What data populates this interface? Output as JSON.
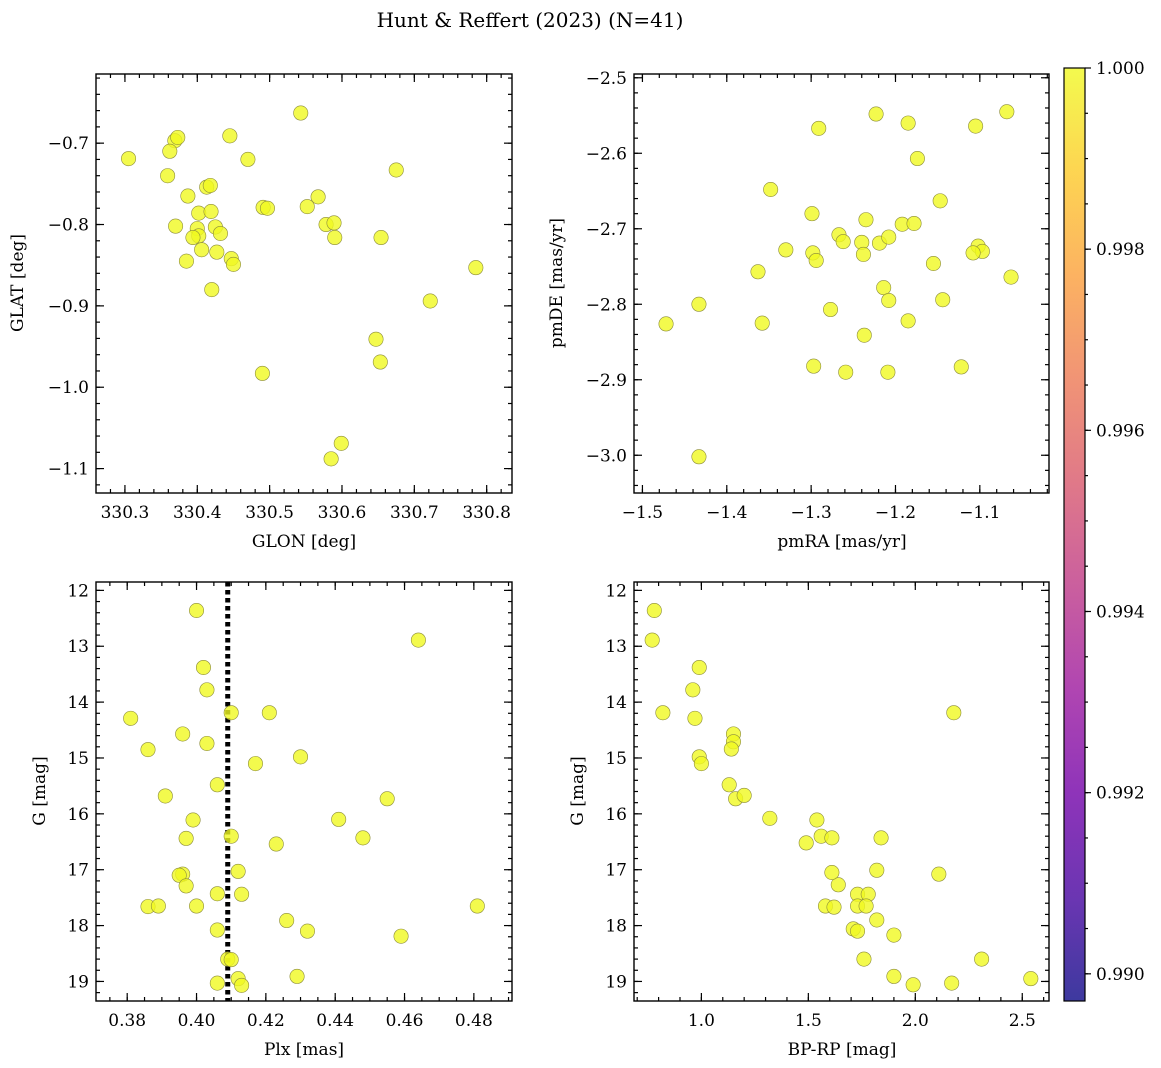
{
  "suptitle": "Hunt & Reffert (2023) (N=41)",
  "point_color": "#f0f921",
  "chart_data": [
    {
      "type": "scatter",
      "xlabel": "GLON [deg]",
      "ylabel": "GLAT [deg]",
      "xlim": [
        330.26,
        330.835
      ],
      "ylim": [
        -1.13,
        -0.615
      ],
      "y_inverted": false,
      "xticks": [
        330.3,
        330.4,
        330.5,
        330.6,
        330.7,
        330.8
      ],
      "xtick_labels": [
        "330.3",
        "330.4",
        "330.5",
        "330.6",
        "330.7",
        "330.8"
      ],
      "xminor": 0.02,
      "yticks": [
        -0.7,
        -0.8,
        -0.9,
        -1.0,
        -1.1
      ],
      "ytick_labels": [
        "−0.7",
        "−0.8",
        "−0.9",
        "−1.0",
        "−1.1"
      ],
      "yminor": 0.02,
      "points": [
        [
          330.543,
          -0.663
        ],
        [
          330.305,
          -0.719
        ],
        [
          330.369,
          -0.697
        ],
        [
          330.373,
          -0.693
        ],
        [
          330.362,
          -0.71
        ],
        [
          330.445,
          -0.691
        ],
        [
          330.359,
          -0.74
        ],
        [
          330.47,
          -0.72
        ],
        [
          330.675,
          -0.733
        ],
        [
          330.387,
          -0.765
        ],
        [
          330.413,
          -0.754
        ],
        [
          330.418,
          -0.752
        ],
        [
          330.37,
          -0.802
        ],
        [
          330.402,
          -0.786
        ],
        [
          330.419,
          -0.784
        ],
        [
          330.491,
          -0.779
        ],
        [
          330.497,
          -0.78
        ],
        [
          330.552,
          -0.778
        ],
        [
          330.567,
          -0.766
        ],
        [
          330.4,
          -0.805
        ],
        [
          330.402,
          -0.814
        ],
        [
          330.425,
          -0.803
        ],
        [
          330.394,
          -0.816
        ],
        [
          330.432,
          -0.811
        ],
        [
          330.578,
          -0.8
        ],
        [
          330.589,
          -0.798
        ],
        [
          330.59,
          -0.816
        ],
        [
          330.654,
          -0.816
        ],
        [
          330.406,
          -0.831
        ],
        [
          330.427,
          -0.834
        ],
        [
          330.447,
          -0.842
        ],
        [
          330.45,
          -0.849
        ],
        [
          330.385,
          -0.845
        ],
        [
          330.785,
          -0.853
        ],
        [
          330.42,
          -0.88
        ],
        [
          330.722,
          -0.894
        ],
        [
          330.647,
          -0.941
        ],
        [
          330.653,
          -0.969
        ],
        [
          330.49,
          -0.983
        ],
        [
          330.599,
          -1.069
        ],
        [
          330.585,
          -1.088
        ]
      ]
    },
    {
      "type": "scatter",
      "xlabel": "pmRA [mas/yr]",
      "ylabel": "pmDE [mas/yr]",
      "xlim": [
        -1.51,
        -1.018
      ],
      "ylim": [
        -3.05,
        -2.495
      ],
      "y_inverted": false,
      "xticks": [
        -1.5,
        -1.4,
        -1.3,
        -1.2,
        -1.1
      ],
      "xtick_labels": [
        "−1.5",
        "−1.4",
        "−1.3",
        "−1.2",
        "−1.1"
      ],
      "xminor": 0.02,
      "yticks": [
        -2.5,
        -2.6,
        -2.7,
        -2.8,
        -2.9,
        -3.0
      ],
      "ytick_labels": [
        "−2.5",
        "−2.6",
        "−2.7",
        "−2.8",
        "−2.9",
        "−3.0"
      ],
      "yminor": 0.02,
      "points": [
        [
          -1.068,
          -2.545
        ],
        [
          -1.223,
          -2.548
        ],
        [
          -1.185,
          -2.56
        ],
        [
          -1.105,
          -2.564
        ],
        [
          -1.291,
          -2.567
        ],
        [
          -1.174,
          -2.607
        ],
        [
          -1.348,
          -2.648
        ],
        [
          -1.147,
          -2.663
        ],
        [
          -1.299,
          -2.68
        ],
        [
          -1.235,
          -2.688
        ],
        [
          -1.192,
          -2.694
        ],
        [
          -1.178,
          -2.693
        ],
        [
          -1.267,
          -2.708
        ],
        [
          -1.262,
          -2.717
        ],
        [
          -1.24,
          -2.718
        ],
        [
          -1.219,
          -2.719
        ],
        [
          -1.208,
          -2.711
        ],
        [
          -1.33,
          -2.728
        ],
        [
          -1.102,
          -2.723
        ],
        [
          -1.097,
          -2.73
        ],
        [
          -1.108,
          -2.732
        ],
        [
          -1.298,
          -2.732
        ],
        [
          -1.294,
          -2.742
        ],
        [
          -1.238,
          -2.734
        ],
        [
          -1.155,
          -2.746
        ],
        [
          -1.363,
          -2.757
        ],
        [
          -1.063,
          -2.764
        ],
        [
          -1.214,
          -2.778
        ],
        [
          -1.208,
          -2.795
        ],
        [
          -1.144,
          -2.794
        ],
        [
          -1.433,
          -2.8
        ],
        [
          -1.277,
          -2.807
        ],
        [
          -1.472,
          -2.826
        ],
        [
          -1.358,
          -2.825
        ],
        [
          -1.185,
          -2.822
        ],
        [
          -1.237,
          -2.841
        ],
        [
          -1.122,
          -2.883
        ],
        [
          -1.297,
          -2.882
        ],
        [
          -1.259,
          -2.89
        ],
        [
          -1.209,
          -2.89
        ],
        [
          -1.433,
          -3.002
        ]
      ]
    },
    {
      "type": "scatter",
      "xlabel": "Plx [mas]",
      "ylabel": "G [mag]",
      "xlim": [
        0.371,
        0.491
      ],
      "ylim": [
        11.85,
        19.35
      ],
      "y_inverted": true,
      "vline": {
        "x": 0.409,
        "style": "dotted",
        "color": "#000000"
      },
      "xticks": [
        0.38,
        0.4,
        0.42,
        0.44,
        0.46,
        0.48
      ],
      "xtick_labels": [
        "0.38",
        "0.40",
        "0.42",
        "0.44",
        "0.46",
        "0.48"
      ],
      "xminor": 0.005,
      "yticks": [
        12,
        13,
        14,
        15,
        16,
        17,
        18,
        19
      ],
      "ytick_labels": [
        "12",
        "13",
        "14",
        "15",
        "16",
        "17",
        "18",
        "19"
      ],
      "yminor": 0.2,
      "points": [
        [
          0.4,
          12.36
        ],
        [
          0.464,
          12.89
        ],
        [
          0.402,
          13.38
        ],
        [
          0.403,
          13.78
        ],
        [
          0.381,
          14.29
        ],
        [
          0.41,
          14.19
        ],
        [
          0.421,
          14.19
        ],
        [
          0.396,
          14.57
        ],
        [
          0.403,
          14.74
        ],
        [
          0.386,
          14.85
        ],
        [
          0.43,
          14.98
        ],
        [
          0.417,
          15.1
        ],
        [
          0.406,
          15.48
        ],
        [
          0.391,
          15.68
        ],
        [
          0.455,
          15.73
        ],
        [
          0.399,
          16.11
        ],
        [
          0.441,
          16.1
        ],
        [
          0.41,
          16.4
        ],
        [
          0.397,
          16.44
        ],
        [
          0.448,
          16.43
        ],
        [
          0.423,
          16.54
        ],
        [
          0.412,
          17.03
        ],
        [
          0.396,
          17.08
        ],
        [
          0.395,
          17.1
        ],
        [
          0.397,
          17.29
        ],
        [
          0.413,
          17.44
        ],
        [
          0.406,
          17.43
        ],
        [
          0.386,
          17.66
        ],
        [
          0.389,
          17.65
        ],
        [
          0.4,
          17.65
        ],
        [
          0.481,
          17.65
        ],
        [
          0.426,
          17.91
        ],
        [
          0.406,
          18.08
        ],
        [
          0.432,
          18.1
        ],
        [
          0.459,
          18.19
        ],
        [
          0.409,
          18.6
        ],
        [
          0.41,
          18.61
        ],
        [
          0.429,
          18.91
        ],
        [
          0.412,
          18.95
        ],
        [
          0.406,
          19.03
        ],
        [
          0.413,
          19.07
        ]
      ]
    },
    {
      "type": "scatter",
      "xlabel": "BP-RP [mag]",
      "ylabel": "G [mag]",
      "xlim": [
        0.685,
        2.625
      ],
      "ylim": [
        11.85,
        19.35
      ],
      "y_inverted": true,
      "xticks": [
        1.0,
        1.5,
        2.0,
        2.5
      ],
      "xtick_labels": [
        "1.0",
        "1.5",
        "2.0",
        "2.5"
      ],
      "xminor": 0.1,
      "yticks": [
        12,
        13,
        14,
        15,
        16,
        17,
        18,
        19
      ],
      "ytick_labels": [
        "12",
        "13",
        "14",
        "15",
        "16",
        "17",
        "18",
        "19"
      ],
      "yminor": 0.2,
      "points": [
        [
          0.78,
          12.36
        ],
        [
          0.77,
          12.89
        ],
        [
          0.99,
          13.38
        ],
        [
          0.96,
          13.78
        ],
        [
          0.82,
          14.19
        ],
        [
          0.97,
          14.29
        ],
        [
          1.15,
          14.57
        ],
        [
          1.15,
          14.71
        ],
        [
          1.14,
          14.84
        ],
        [
          2.18,
          14.19
        ],
        [
          0.99,
          14.98
        ],
        [
          1.0,
          15.1
        ],
        [
          1.13,
          15.48
        ],
        [
          1.16,
          15.73
        ],
        [
          1.2,
          15.67
        ],
        [
          1.32,
          16.08
        ],
        [
          1.54,
          16.11
        ],
        [
          1.56,
          16.4
        ],
        [
          1.61,
          16.43
        ],
        [
          1.84,
          16.43
        ],
        [
          1.49,
          16.52
        ],
        [
          1.64,
          17.27
        ],
        [
          1.61,
          17.05
        ],
        [
          1.82,
          17.01
        ],
        [
          2.11,
          17.08
        ],
        [
          1.73,
          17.44
        ],
        [
          1.78,
          17.44
        ],
        [
          1.58,
          17.65
        ],
        [
          1.62,
          17.67
        ],
        [
          1.73,
          17.65
        ],
        [
          1.77,
          17.65
        ],
        [
          1.82,
          17.9
        ],
        [
          1.71,
          18.06
        ],
        [
          1.73,
          18.1
        ],
        [
          1.9,
          18.17
        ],
        [
          2.31,
          18.6
        ],
        [
          1.76,
          18.6
        ],
        [
          1.9,
          18.91
        ],
        [
          2.54,
          18.95
        ],
        [
          2.17,
          19.03
        ],
        [
          1.99,
          19.06
        ]
      ]
    }
  ],
  "colorbar": {
    "min": 0.9897,
    "max": 1.0,
    "ticks": [
      0.99,
      0.992,
      0.994,
      0.996,
      0.998,
      1.0
    ],
    "tick_labels": [
      "0.990",
      "0.992",
      "0.994",
      "0.996",
      "0.998",
      "1.000"
    ],
    "minor": 0.0005,
    "colormap": "plasma",
    "stops": [
      "#0d0887",
      "#46039f",
      "#7201a8",
      "#9c179e",
      "#bd3786",
      "#d8576b",
      "#ed7953",
      "#fb9f3a",
      "#fdca26",
      "#f0f921"
    ]
  }
}
